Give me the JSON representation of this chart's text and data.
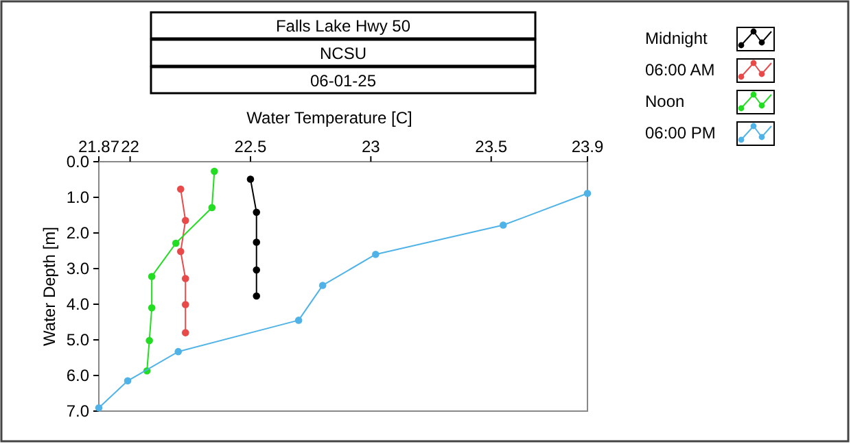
{
  "chart_data": {
    "type": "line",
    "title": "Falls Lake Hwy 50",
    "subtitle": "NCSU",
    "annotations": [
      "06-01-25"
    ],
    "xlabel": "Water Temperature [C]",
    "ylabel": "Water Depth [m]",
    "xlim": [
      21.87,
      23.9
    ],
    "xticks": [
      21.87,
      22,
      22.5,
      23,
      23.5,
      23.9
    ],
    "ylim": [
      7,
      0
    ],
    "yticks": [
      {
        "value": 0,
        "label": "0.0"
      },
      {
        "value": 1,
        "label": "1.0"
      },
      {
        "value": 2,
        "label": "2.0"
      },
      {
        "value": 3,
        "label": "3.0"
      },
      {
        "value": 4,
        "label": "4.0"
      },
      {
        "value": 5,
        "label": "5.0"
      },
      {
        "value": 6,
        "label": "6.0"
      },
      {
        "value": 7,
        "label": "7.0"
      }
    ],
    "grid": false,
    "legend": "top right",
    "marker": "circle",
    "line_style": "solid",
    "series": [
      {
        "name": "Midnight",
        "color": "#000000",
        "x": [
          22.5,
          22.525,
          22.525,
          22.525,
          22.525
        ],
        "values": [
          0.49,
          1.42,
          2.26,
          3.04,
          3.77
        ]
      },
      {
        "name": "06:00 AM",
        "color": "#e84a4a",
        "x": [
          22.21,
          22.23,
          22.21,
          22.23,
          22.23,
          22.23
        ],
        "values": [
          0.77,
          1.65,
          2.52,
          3.28,
          4.01,
          4.8
        ]
      },
      {
        "name": "Noon",
        "color": "#22dd22",
        "x": [
          22.35,
          22.34,
          22.19,
          22.09,
          22.09,
          22.08,
          22.07
        ],
        "values": [
          0.27,
          1.29,
          2.29,
          3.22,
          4.1,
          5.02,
          5.87
        ]
      },
      {
        "name": "06:00 PM",
        "color": "#4fb3e8",
        "x": [
          23.9,
          23.55,
          23.02,
          22.8,
          22.7,
          22.2,
          21.99,
          21.87
        ],
        "values": [
          0.89,
          1.78,
          2.6,
          3.47,
          4.45,
          5.33,
          6.15,
          6.91
        ]
      }
    ]
  }
}
